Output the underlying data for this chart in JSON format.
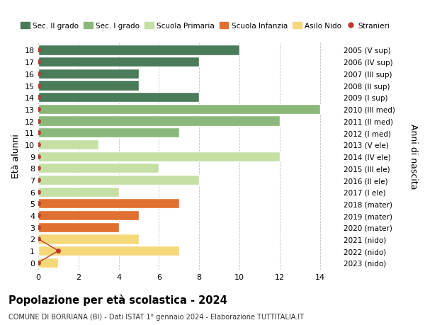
{
  "ages": [
    18,
    17,
    16,
    15,
    14,
    13,
    12,
    11,
    10,
    9,
    8,
    7,
    6,
    5,
    4,
    3,
    2,
    1,
    0
  ],
  "years": [
    "2005 (V sup)",
    "2006 (IV sup)",
    "2007 (III sup)",
    "2008 (II sup)",
    "2009 (I sup)",
    "2010 (III med)",
    "2011 (II med)",
    "2012 (I med)",
    "2013 (V ele)",
    "2014 (IV ele)",
    "2015 (III ele)",
    "2016 (II ele)",
    "2017 (I ele)",
    "2018 (mater)",
    "2019 (mater)",
    "2020 (mater)",
    "2021 (nido)",
    "2022 (nido)",
    "2023 (nido)"
  ],
  "values": [
    10,
    8,
    5,
    5,
    8,
    14,
    12,
    7,
    3,
    12,
    6,
    8,
    4,
    7,
    5,
    4,
    5,
    7,
    1
  ],
  "stranieri_x": [
    0,
    0,
    0,
    0,
    0,
    0,
    0,
    0,
    0,
    0,
    0,
    0,
    0,
    0,
    0,
    0,
    0,
    1,
    0
  ],
  "bar_colors": [
    "#4a7c59",
    "#4a7c59",
    "#4a7c59",
    "#4a7c59",
    "#4a7c59",
    "#8ab87a",
    "#8ab87a",
    "#8ab87a",
    "#c5dfa5",
    "#c5dfa5",
    "#c5dfa5",
    "#c5dfa5",
    "#c5dfa5",
    "#e07030",
    "#e07030",
    "#e07030",
    "#f5d87a",
    "#f5d87a",
    "#f5d87a"
  ],
  "legend_labels": [
    "Sec. II grado",
    "Sec. I grado",
    "Scuola Primaria",
    "Scuola Infanzia",
    "Asilo Nido",
    "Stranieri"
  ],
  "legend_colors": [
    "#4a7c59",
    "#8ab87a",
    "#c5dfa5",
    "#e07030",
    "#f5d87a",
    "#c0392b"
  ],
  "stranieri_color": "#c0392b",
  "ylabel_left": "Età alunni",
  "ylabel_right": "Anni di nascita",
  "title": "Popolazione per età scolastica - 2024",
  "subtitle": "COMUNE DI BORRIANA (BI) - Dati ISTAT 1° gennaio 2024 - Elaborazione TUTTITALIA.IT",
  "xlim": [
    0,
    15
  ],
  "xticks": [
    0,
    2,
    4,
    6,
    8,
    10,
    12,
    14
  ],
  "background_color": "#ffffff",
  "grid_color": "#bbbbbb"
}
